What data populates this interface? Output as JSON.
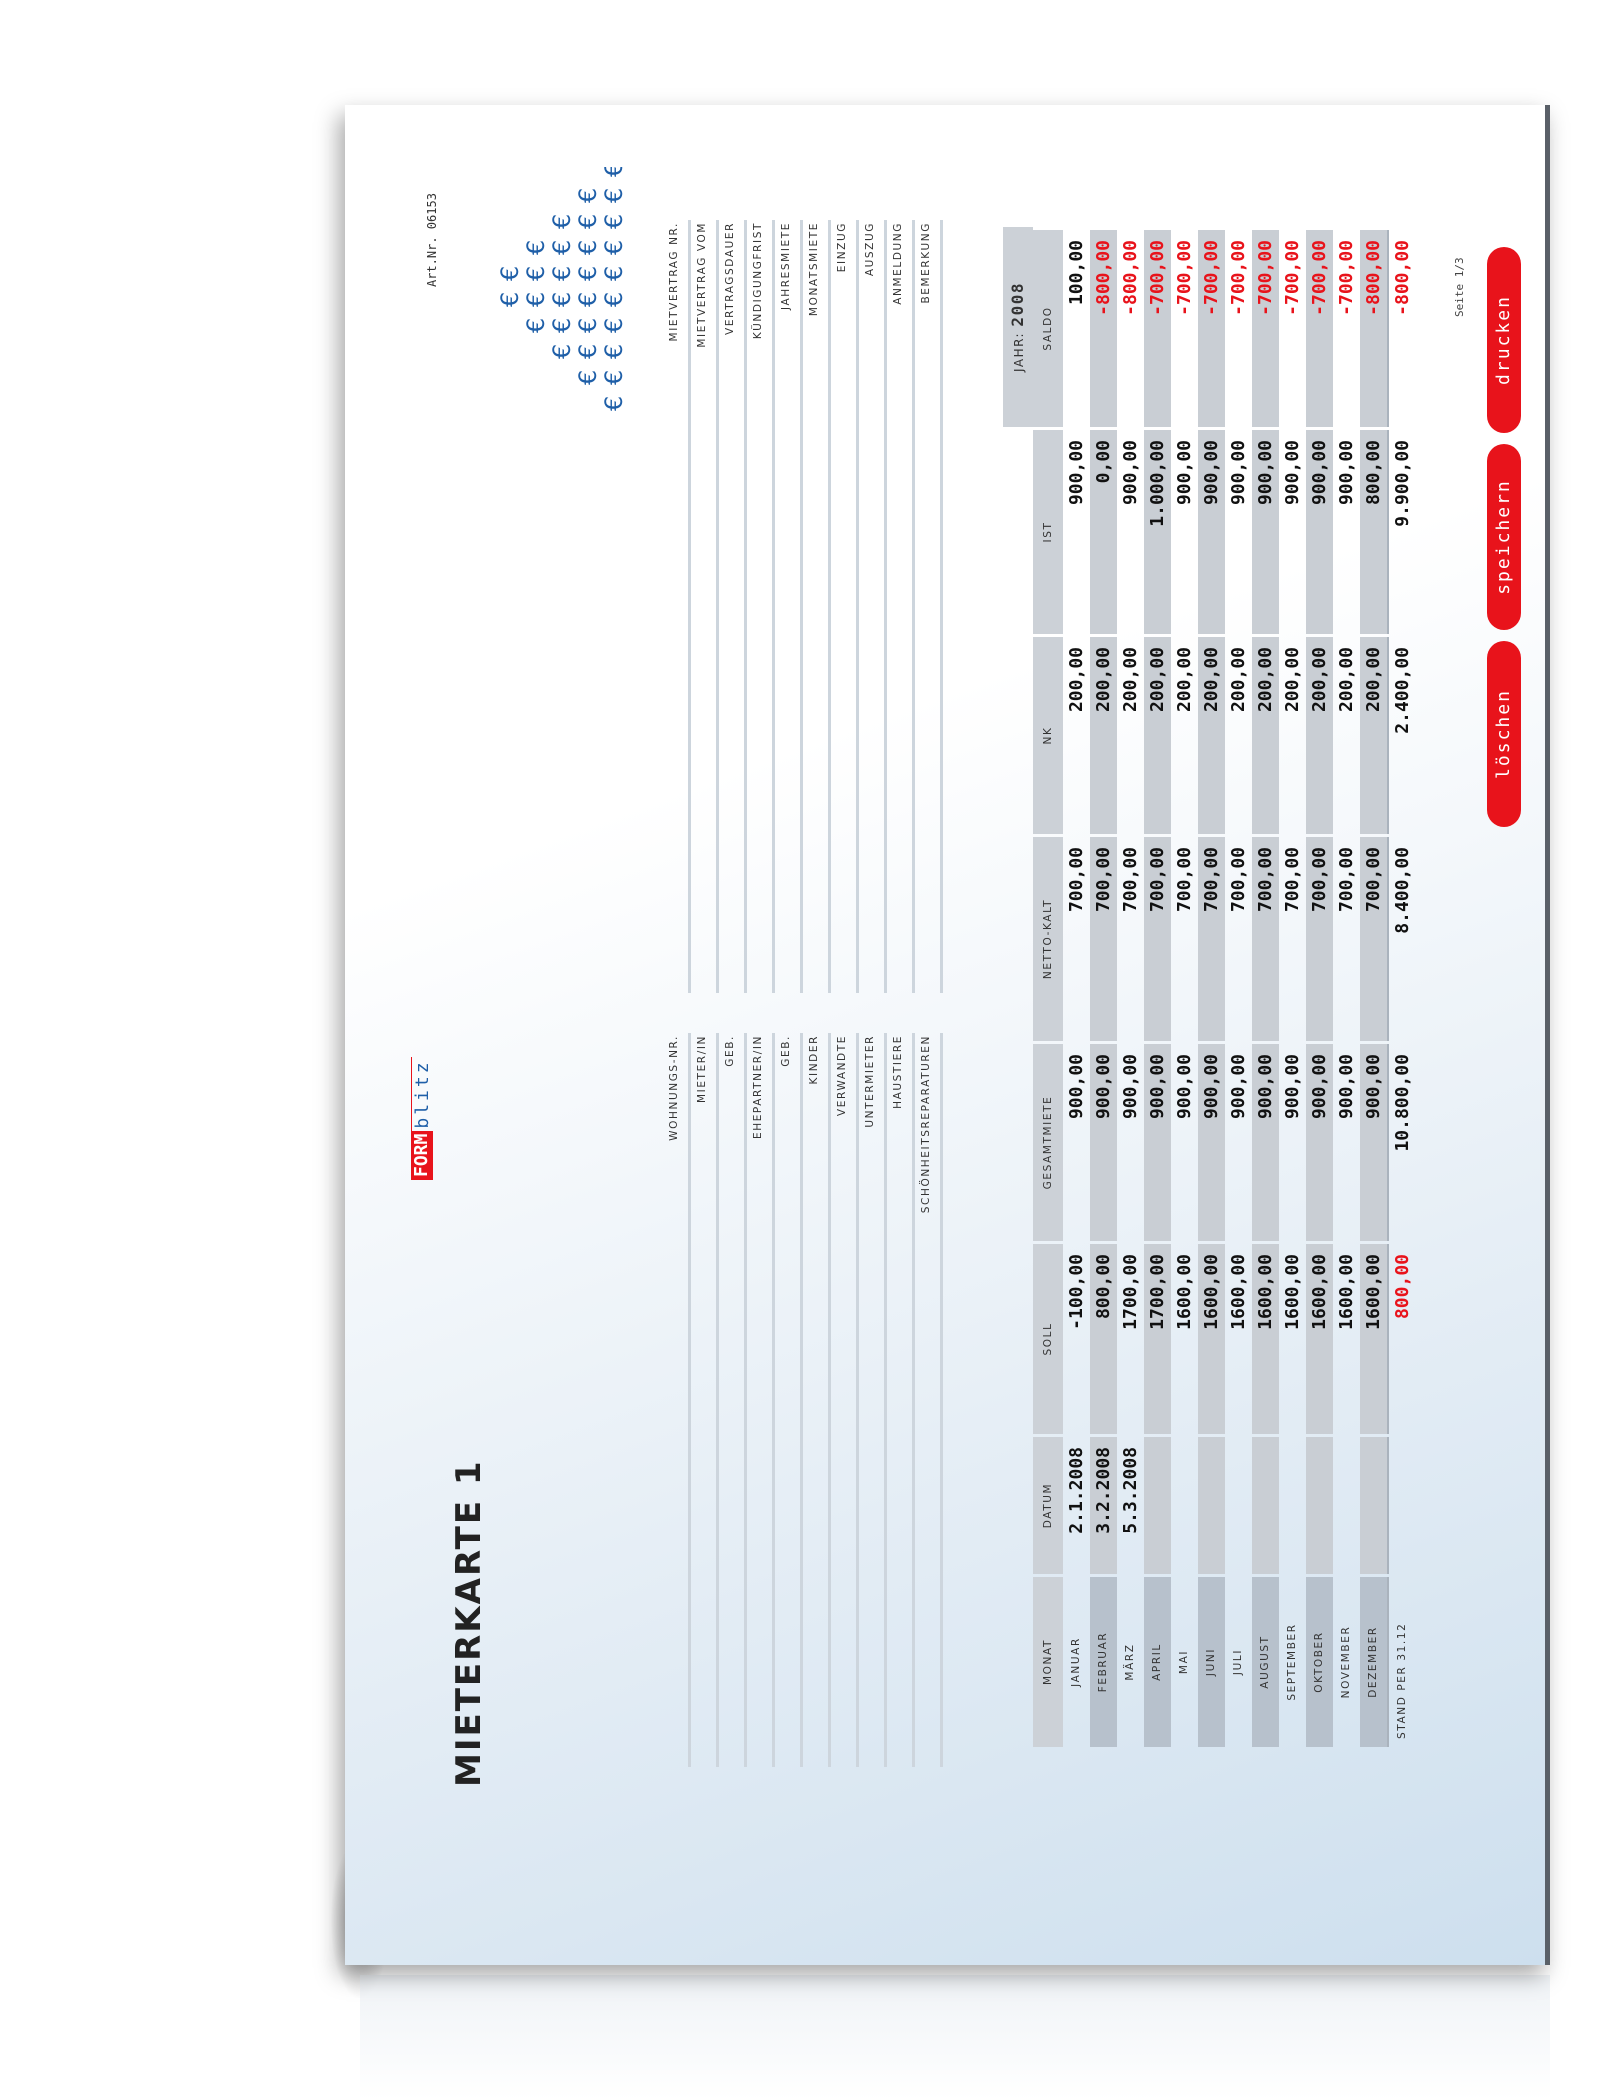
{
  "document": {
    "title": "MIETERKARTE 1",
    "logo": {
      "form": "FORM",
      "blitz": "blitz"
    },
    "art_nr": "Art.Nr. 06153",
    "page_indicator": "Seite 1/3",
    "pattern_glyph": "€"
  },
  "tenant_fields": [
    {
      "label": "WOHNUNGS-NR.",
      "value": ""
    },
    {
      "label": "MIETER/IN",
      "value": ""
    },
    {
      "label": "GEB.",
      "value": ""
    },
    {
      "label": "EHEPARTNER/IN",
      "value": ""
    },
    {
      "label": "GEB.",
      "value": ""
    },
    {
      "label": "KINDER",
      "value": ""
    },
    {
      "label": "VERWANDTE",
      "value": ""
    },
    {
      "label": "UNTERMIETER",
      "value": ""
    },
    {
      "label": "HAUSTIERE",
      "value": ""
    },
    {
      "label": "SCHÖNHEITSREPARATUREN",
      "value": ""
    }
  ],
  "contract_fields": [
    {
      "label": "MIETVERTRAG NR.",
      "value": ""
    },
    {
      "label": "MIETVERTRAG VOM",
      "value": ""
    },
    {
      "label": "VERTRAGSDAUER",
      "value": ""
    },
    {
      "label": "KÜNDIGUNGFRIST",
      "value": ""
    },
    {
      "label": "JAHRESMIETE",
      "value": ""
    },
    {
      "label": "MONATSMIETE",
      "value": ""
    },
    {
      "label": "EINZUG",
      "value": ""
    },
    {
      "label": "AUSZUG",
      "value": ""
    },
    {
      "label": "ANMELDUNG",
      "value": ""
    },
    {
      "label": "BEMERKUNG",
      "value": ""
    }
  ],
  "table": {
    "year_label": "JAHR:",
    "year": "2008",
    "columns": [
      "MONAT",
      "DATUM",
      "SOLL",
      "GESAMTMIETE",
      "NETTO-KALT",
      "NK",
      "IST",
      "SALDO"
    ],
    "rows": [
      [
        "JANUAR",
        "2.1.2008",
        "-100,00",
        "900,00",
        "700,00",
        "200,00",
        "900,00",
        "100,00"
      ],
      [
        "FEBRUAR",
        "3.2.2008",
        "800,00",
        "900,00",
        "700,00",
        "200,00",
        "0,00",
        "-800,00"
      ],
      [
        "MÄRZ",
        "5.3.2008",
        "1700,00",
        "900,00",
        "700,00",
        "200,00",
        "900,00",
        "-800,00"
      ],
      [
        "APRIL",
        "",
        "1700,00",
        "900,00",
        "700,00",
        "200,00",
        "1.000,00",
        "-700,00"
      ],
      [
        "MAI",
        "",
        "1600,00",
        "900,00",
        "700,00",
        "200,00",
        "900,00",
        "-700,00"
      ],
      [
        "JUNI",
        "",
        "1600,00",
        "900,00",
        "700,00",
        "200,00",
        "900,00",
        "-700,00"
      ],
      [
        "JULI",
        "",
        "1600,00",
        "900,00",
        "700,00",
        "200,00",
        "900,00",
        "-700,00"
      ],
      [
        "AUGUST",
        "",
        "1600,00",
        "900,00",
        "700,00",
        "200,00",
        "900,00",
        "-700,00"
      ],
      [
        "SEPTEMBER",
        "",
        "1600,00",
        "900,00",
        "700,00",
        "200,00",
        "900,00",
        "-700,00"
      ],
      [
        "OKTOBER",
        "",
        "1600,00",
        "900,00",
        "700,00",
        "200,00",
        "900,00",
        "-700,00"
      ],
      [
        "NOVEMBER",
        "",
        "1600,00",
        "900,00",
        "700,00",
        "200,00",
        "900,00",
        "-700,00"
      ],
      [
        "DEZEMBER",
        "",
        "1600,00",
        "900,00",
        "700,00",
        "200,00",
        "800,00",
        "-800,00"
      ]
    ],
    "total": [
      "STAND PER 31.12",
      "",
      "800,00",
      "10.800,00",
      "8.400,00",
      "2.400,00",
      "9.900,00",
      "-800,00"
    ],
    "highlight_total_soll": true
  },
  "buttons": {
    "delete": "löschen",
    "save": "speichern",
    "print": "drucken"
  },
  "colors": {
    "accent": "#e8131b",
    "logo_blue": "#1f5fa8",
    "header_gray": "#ccd1d7",
    "negative": "#e8131b"
  }
}
